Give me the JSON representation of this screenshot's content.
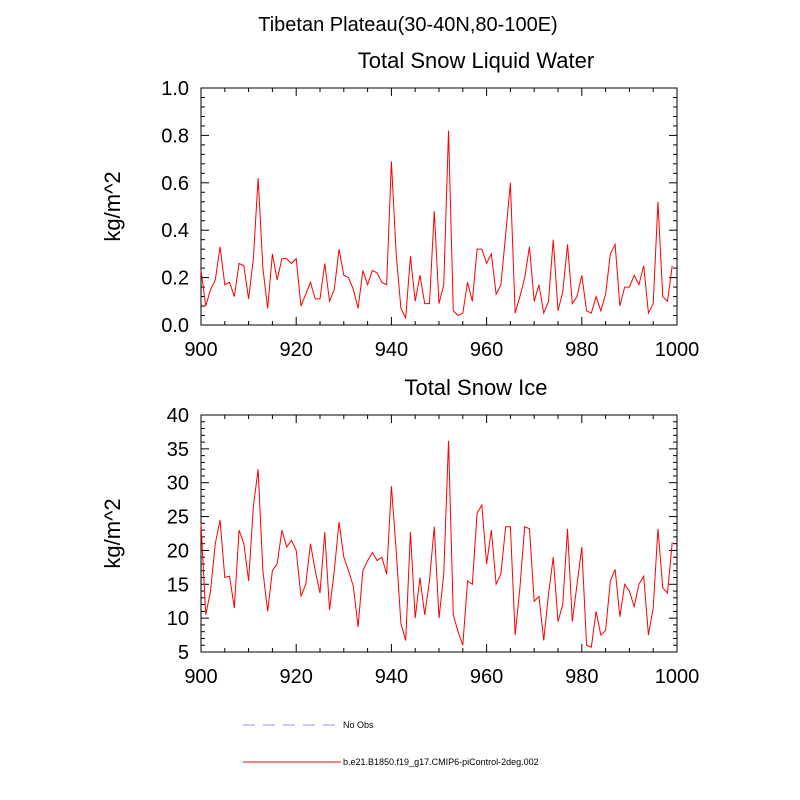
{
  "figure": {
    "main_title": "Tibetan Plateau(30-40N,80-100E)"
  },
  "colors": {
    "series": "#ff0000",
    "obs": "#9999dd",
    "axis": "#000000"
  },
  "legend": [
    {
      "label": "No Obs",
      "style": "dashed",
      "color": "#9999dd"
    },
    {
      "label": "b.e21.B1850.f19_g17.CMIP6-piControl-2deg.002",
      "style": "solid",
      "color": "#ff0000"
    }
  ],
  "chart_data": [
    {
      "type": "line",
      "title": "Total Snow Liquid Water",
      "xlabel": "",
      "ylabel": "kg/m^2",
      "xlim": [
        900,
        1000
      ],
      "ylim": [
        0.0,
        1.0
      ],
      "xticks": [
        900,
        920,
        940,
        960,
        980,
        1000
      ],
      "xtick_labels": [
        "900",
        "920",
        "940",
        "960",
        "980",
        "1000"
      ],
      "yticks": [
        0.0,
        0.2,
        0.4,
        0.6,
        0.8,
        1.0
      ],
      "ytick_labels": [
        "0.0",
        "0.2",
        "0.4",
        "0.6",
        "0.8",
        "1.0"
      ],
      "series": [
        {
          "name": "b.e21.B1850.f19_g17.CMIP6-piControl-2deg.002",
          "x_start": 900,
          "x_step": 1,
          "values": [
            0.23,
            0.08,
            0.15,
            0.19,
            0.33,
            0.17,
            0.18,
            0.12,
            0.26,
            0.25,
            0.11,
            0.28,
            0.62,
            0.24,
            0.07,
            0.3,
            0.19,
            0.28,
            0.28,
            0.26,
            0.28,
            0.08,
            0.13,
            0.18,
            0.11,
            0.11,
            0.26,
            0.1,
            0.15,
            0.32,
            0.21,
            0.2,
            0.15,
            0.07,
            0.23,
            0.17,
            0.23,
            0.22,
            0.18,
            0.17,
            0.69,
            0.3,
            0.07,
            0.03,
            0.29,
            0.1,
            0.21,
            0.09,
            0.09,
            0.48,
            0.09,
            0.17,
            0.82,
            0.06,
            0.04,
            0.05,
            0.18,
            0.1,
            0.32,
            0.32,
            0.26,
            0.3,
            0.13,
            0.17,
            0.38,
            0.6,
            0.05,
            0.12,
            0.2,
            0.33,
            0.1,
            0.17,
            0.05,
            0.1,
            0.36,
            0.06,
            0.14,
            0.34,
            0.09,
            0.12,
            0.21,
            0.06,
            0.05,
            0.12,
            0.06,
            0.13,
            0.3,
            0.34,
            0.08,
            0.16,
            0.16,
            0.21,
            0.17,
            0.25,
            0.05,
            0.09,
            0.52,
            0.12,
            0.1,
            0.25
          ]
        }
      ]
    },
    {
      "type": "line",
      "title": "Total Snow Ice",
      "xlabel": "",
      "ylabel": "kg/m^2",
      "xlim": [
        900,
        1000
      ],
      "ylim": [
        5,
        40
      ],
      "xticks": [
        900,
        920,
        940,
        960,
        980,
        1000
      ],
      "xtick_labels": [
        "900",
        "920",
        "940",
        "960",
        "980",
        "1000"
      ],
      "yticks": [
        5,
        10,
        15,
        20,
        25,
        30,
        35,
        40
      ],
      "ytick_labels": [
        "5",
        "10",
        "15",
        "20",
        "25",
        "30",
        "35",
        "40"
      ],
      "series": [
        {
          "name": "b.e21.B1850.f19_g17.CMIP6-piControl-2deg.002",
          "x_start": 900,
          "x_step": 1,
          "values": [
            24,
            10.5,
            14,
            21,
            24.5,
            16,
            16.2,
            11.5,
            23,
            21,
            15.5,
            26.5,
            32,
            17,
            11,
            17,
            18,
            23,
            20.5,
            21.5,
            20,
            13.2,
            15,
            21,
            17,
            13.7,
            22.7,
            11.2,
            17,
            24.2,
            19,
            17,
            14.7,
            8.7,
            17,
            18.5,
            19.7,
            18.5,
            19,
            16.5,
            29.5,
            20,
            9.2,
            6.7,
            22.7,
            10,
            16,
            10.5,
            15.5,
            23.5,
            10,
            16.5,
            36.2,
            10.5,
            8,
            6,
            15.5,
            15,
            25.5,
            26.7,
            18,
            23,
            15,
            16.5,
            23.5,
            23.5,
            7.5,
            14.5,
            23.5,
            23.2,
            12.5,
            13.2,
            6.7,
            13.5,
            19,
            9.5,
            12,
            23.2,
            9.5,
            15,
            20.5,
            6,
            5.7,
            11,
            7.5,
            8.2,
            15.5,
            17.2,
            10.2,
            15,
            14,
            11.7,
            15,
            16.2,
            7.5,
            11.5,
            23.2,
            14.5,
            13.7,
            21.2
          ]
        }
      ]
    }
  ]
}
